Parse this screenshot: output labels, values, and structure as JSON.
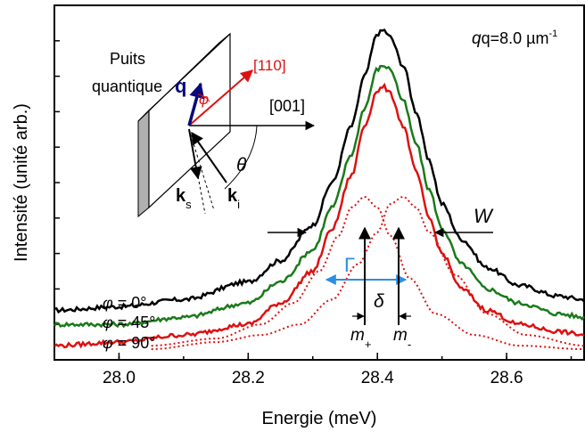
{
  "chart_data": {
    "type": "line",
    "xlabel": "Energie (meV)",
    "ylabel": "Intensité (unité arb.)",
    "xlim": [
      27.9,
      28.72
    ],
    "ylim": [
      0.0,
      1.0
    ],
    "x_ticks": [
      "28.0",
      "28.2",
      "28.4",
      "28.6"
    ],
    "y_ticks_labeled": false,
    "grid": false,
    "legend_position": "left-bottom, near curve starts",
    "series": [
      {
        "name": "φ = 0°",
        "color": "#000000",
        "style": "solid",
        "points": [
          [
            27.9,
            0.14
          ],
          [
            28.0,
            0.15
          ],
          [
            28.1,
            0.17
          ],
          [
            28.2,
            0.22
          ],
          [
            28.25,
            0.28
          ],
          [
            28.3,
            0.38
          ],
          [
            28.33,
            0.5
          ],
          [
            28.36,
            0.66
          ],
          [
            28.38,
            0.8
          ],
          [
            28.4,
            0.92
          ],
          [
            28.41,
            0.93
          ],
          [
            28.42,
            0.91
          ],
          [
            28.44,
            0.83
          ],
          [
            28.46,
            0.7
          ],
          [
            28.48,
            0.56
          ],
          [
            28.5,
            0.44
          ],
          [
            28.53,
            0.34
          ],
          [
            28.57,
            0.26
          ],
          [
            28.62,
            0.21
          ],
          [
            28.68,
            0.18
          ],
          [
            28.72,
            0.17
          ]
        ]
      },
      {
        "name": "φ = 45°",
        "color": "#1a7a1a",
        "style": "solid",
        "points": [
          [
            27.9,
            0.1
          ],
          [
            28.0,
            0.1
          ],
          [
            28.1,
            0.12
          ],
          [
            28.2,
            0.16
          ],
          [
            28.25,
            0.22
          ],
          [
            28.3,
            0.31
          ],
          [
            28.33,
            0.43
          ],
          [
            28.36,
            0.58
          ],
          [
            28.38,
            0.71
          ],
          [
            28.4,
            0.82
          ],
          [
            28.41,
            0.83
          ],
          [
            28.42,
            0.82
          ],
          [
            28.44,
            0.73
          ],
          [
            28.46,
            0.61
          ],
          [
            28.48,
            0.48
          ],
          [
            28.5,
            0.37
          ],
          [
            28.53,
            0.27
          ],
          [
            28.57,
            0.2
          ],
          [
            28.62,
            0.16
          ],
          [
            28.68,
            0.13
          ],
          [
            28.72,
            0.12
          ]
        ]
      },
      {
        "name": "φ = 90°",
        "color": "#dd1111",
        "style": "solid",
        "points": [
          [
            27.9,
            0.04
          ],
          [
            28.0,
            0.05
          ],
          [
            28.1,
            0.07
          ],
          [
            28.2,
            0.1
          ],
          [
            28.25,
            0.16
          ],
          [
            28.3,
            0.25
          ],
          [
            28.33,
            0.37
          ],
          [
            28.36,
            0.52
          ],
          [
            28.38,
            0.66
          ],
          [
            28.4,
            0.76
          ],
          [
            28.41,
            0.77
          ],
          [
            28.42,
            0.75
          ],
          [
            28.44,
            0.66
          ],
          [
            28.46,
            0.53
          ],
          [
            28.48,
            0.4
          ],
          [
            28.5,
            0.3
          ],
          [
            28.53,
            0.2
          ],
          [
            28.57,
            0.14
          ],
          [
            28.62,
            0.1
          ],
          [
            28.68,
            0.08
          ],
          [
            28.72,
            0.07
          ]
        ]
      },
      {
        "name": "m+",
        "color": "#dd1111",
        "style": "dotted",
        "points": [
          [
            28.05,
            0.04
          ],
          [
            28.15,
            0.06
          ],
          [
            28.22,
            0.1
          ],
          [
            28.27,
            0.16
          ],
          [
            28.31,
            0.25
          ],
          [
            28.34,
            0.35
          ],
          [
            28.36,
            0.43
          ],
          [
            28.38,
            0.46
          ],
          [
            28.4,
            0.43
          ],
          [
            28.42,
            0.35
          ],
          [
            28.45,
            0.23
          ],
          [
            28.49,
            0.13
          ],
          [
            28.55,
            0.07
          ],
          [
            28.62,
            0.04
          ],
          [
            28.72,
            0.03
          ]
        ]
      },
      {
        "name": "m-",
        "color": "#dd1111",
        "style": "dotted",
        "points": [
          [
            28.05,
            0.03
          ],
          [
            28.15,
            0.05
          ],
          [
            28.22,
            0.07
          ],
          [
            28.28,
            0.1
          ],
          [
            28.33,
            0.17
          ],
          [
            28.37,
            0.27
          ],
          [
            28.4,
            0.36
          ],
          [
            28.42,
            0.44
          ],
          [
            28.44,
            0.46
          ],
          [
            28.46,
            0.43
          ],
          [
            28.48,
            0.36
          ],
          [
            28.52,
            0.24
          ],
          [
            28.57,
            0.13
          ],
          [
            28.63,
            0.07
          ],
          [
            28.72,
            0.04
          ]
        ]
      }
    ],
    "annotations": {
      "q_label": "q=8.0 µm",
      "q_sup": "-1",
      "w": "W",
      "gamma": "Γ",
      "delta": "δ",
      "m_plus": "m",
      "m_plus_sub": "+",
      "m_minus": "m",
      "m_minus_sub": "-"
    },
    "inset": {
      "well_label_1": "Puits",
      "well_label_2": "quantique",
      "q": "q",
      "phi": "φ",
      "dir_110": "[110]",
      "dir_001": "[001]",
      "theta": "θ",
      "ks": "k",
      "ks_sub": "s",
      "ki": "k",
      "ki_sub": "i"
    },
    "legend_labels": {
      "phi0_sym": "φ",
      "phi0_val": " = 0°",
      "phi45_sym": "φ",
      "phi45_val": " = 45°",
      "phi90_sym": "φ",
      "phi90_val": " = 90°"
    }
  }
}
